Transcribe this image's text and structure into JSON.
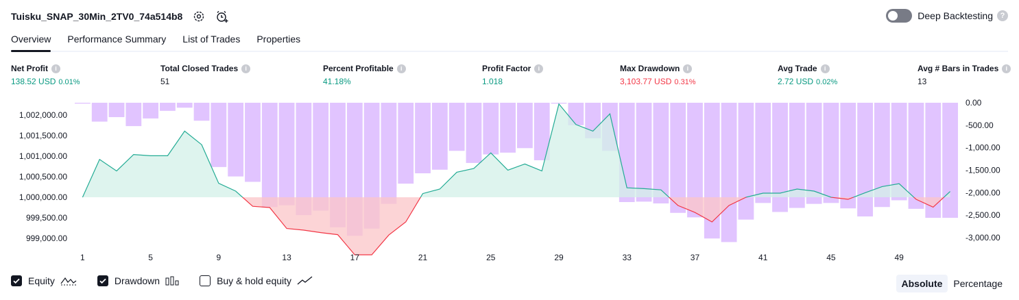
{
  "header": {
    "strategy_name": "Tuisku_SNAP_30Min_2TV0_74a514b8",
    "settings_icon": "gear-icon",
    "alert_icon": "alarm-clock-add-icon",
    "deep_backtesting_label": "Deep Backtesting",
    "deep_backtesting_enabled": false
  },
  "tabs": [
    {
      "label": "Overview",
      "active": true
    },
    {
      "label": "Performance Summary",
      "active": false
    },
    {
      "label": "List of Trades",
      "active": false
    },
    {
      "label": "Properties",
      "active": false
    }
  ],
  "metrics": [
    {
      "label": "Net Profit",
      "value": "138.52 USD",
      "pct": "0.01%",
      "tone": "pos"
    },
    {
      "label": "Total Closed Trades",
      "value": "51",
      "pct": "",
      "tone": "neutral"
    },
    {
      "label": "Percent Profitable",
      "value": "41.18%",
      "pct": "",
      "tone": "pos"
    },
    {
      "label": "Profit Factor",
      "value": "1.018",
      "pct": "",
      "tone": "pos"
    },
    {
      "label": "Max Drawdown",
      "value": "3,103.77 USD",
      "pct": "0.31%",
      "tone": "neg"
    },
    {
      "label": "Avg Trade",
      "value": "2.72 USD",
      "pct": "0.02%",
      "tone": "pos"
    },
    {
      "label": "Avg # Bars in Trades",
      "value": "13",
      "pct": "",
      "tone": "neutral"
    }
  ],
  "legend": {
    "equity_label": "Equity",
    "equity_checked": true,
    "drawdown_label": "Drawdown",
    "drawdown_checked": true,
    "buyhold_label": "Buy & hold equity",
    "buyhold_checked": false
  },
  "modes": {
    "absolute": "Absolute",
    "percentage": "Percentage",
    "active": "absolute"
  },
  "colors": {
    "equity_line": "#22ab94",
    "equity_fill": "#d3f0e8",
    "equity_negative_line": "#f23645",
    "equity_negative_fill": "#fbc6c8",
    "drawdown_bar": "#e1c4ff",
    "text": "#131722"
  },
  "chart_data": {
    "type": "line",
    "x_ticks": [
      1,
      5,
      9,
      13,
      17,
      21,
      25,
      29,
      33,
      37,
      41,
      45,
      49
    ],
    "left_axis": {
      "ticks": [
        "1,002,000.00",
        "1,001,500.00",
        "1,001,000.00",
        "1,000,500.00",
        "1,000,000.00",
        "999,500.00",
        "999,000.00"
      ],
      "tick_values": [
        1002000,
        1001500,
        1001000,
        1000500,
        1000000,
        999500,
        999000
      ],
      "range": [
        998800,
        1002300
      ],
      "baseline": 1000000
    },
    "right_axis": {
      "ticks": [
        "0.00",
        "-500.00",
        "-1,000.00",
        "-1,500.00",
        "-2,000.00",
        "-2,500.00",
        "-3,000.00"
      ],
      "tick_values": [
        0,
        -500,
        -1000,
        -1500,
        -2000,
        -2500,
        -3000
      ],
      "range": [
        -3200,
        0
      ]
    },
    "series": [
      {
        "name": "Equity",
        "x": [
          1,
          2,
          3,
          4,
          5,
          6,
          7,
          8,
          9,
          10,
          11,
          12,
          13,
          14,
          15,
          16,
          17,
          18,
          19,
          20,
          21,
          22,
          23,
          24,
          25,
          26,
          27,
          28,
          29,
          30,
          31,
          32,
          33,
          34,
          35,
          36,
          37,
          38,
          39,
          40,
          41,
          42,
          43,
          44,
          45,
          46,
          47,
          48,
          49,
          50,
          51,
          52
        ],
        "values": [
          1000000,
          1000920,
          1000640,
          1001040,
          1001010,
          1001010,
          1001610,
          1001280,
          1000340,
          1000150,
          999780,
          999750,
          999240,
          999200,
          999140,
          999090,
          998600,
          998600,
          999080,
          999400,
          1000090,
          1000200,
          1000610,
          1000700,
          1001080,
          1000660,
          1000810,
          1000640,
          1002270,
          1001770,
          1001610,
          1002030,
          1000230,
          1000210,
          1000180,
          999800,
          999630,
          999400,
          999800,
          1000000,
          1000100,
          1000100,
          1000200,
          1000150,
          1000000,
          999950,
          1000110,
          1000260,
          1000330,
          999950,
          999760,
          1000140
        ]
      },
      {
        "name": "Drawdown",
        "x": [
          1,
          2,
          3,
          4,
          5,
          6,
          7,
          8,
          9,
          10,
          11,
          12,
          13,
          14,
          15,
          16,
          17,
          18,
          19,
          20,
          21,
          22,
          23,
          24,
          25,
          26,
          27,
          28,
          29,
          30,
          31,
          32,
          33,
          34,
          35,
          36,
          37,
          38,
          39,
          40,
          41,
          42,
          43,
          44,
          45,
          46,
          47,
          48,
          49,
          50,
          51,
          52
        ],
        "values": [
          -20,
          -420,
          -320,
          -520,
          -350,
          -180,
          -110,
          -400,
          -1430,
          -1640,
          -1760,
          -2320,
          -2280,
          -2500,
          -2400,
          -2770,
          -2960,
          -2800,
          -2250,
          -1800,
          -1570,
          -1490,
          -1070,
          -1340,
          -1150,
          -1110,
          -1010,
          -1280,
          -20,
          -500,
          -790,
          -1070,
          -2210,
          -2200,
          -2240,
          -2450,
          -2550,
          -3020,
          -3100,
          -2600,
          -2230,
          -2430,
          -2340,
          -2250,
          -2230,
          -2350,
          -2530,
          -2320,
          -2170,
          -2360,
          -2560,
          -2560
        ]
      }
    ]
  }
}
